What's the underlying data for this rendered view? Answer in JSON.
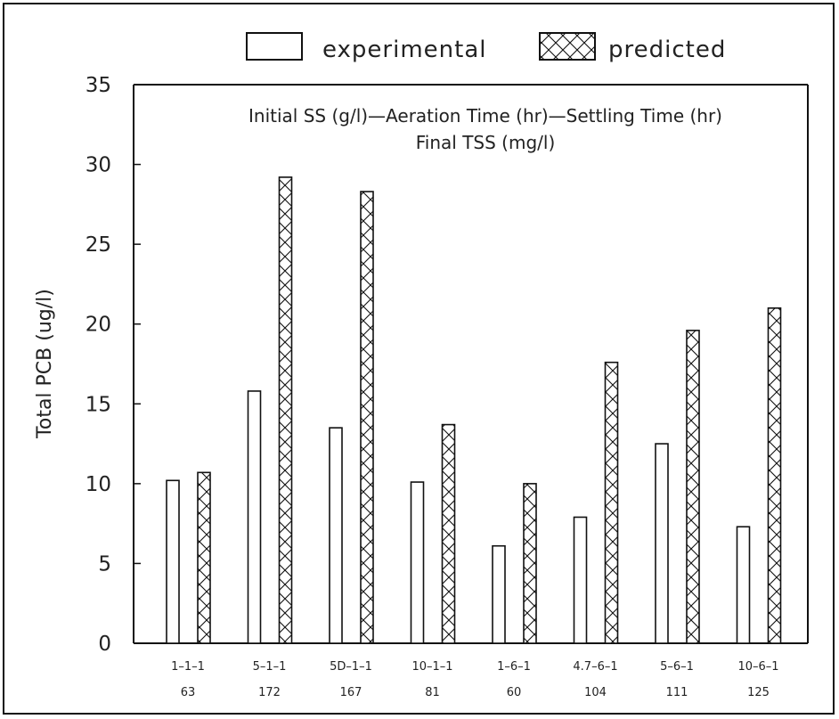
{
  "chart_data": {
    "type": "bar",
    "title": "Initial SS (g/l)—Aeration Time (hr)—Settling Time (hr)",
    "subtitle": "Final TSS (mg/l)",
    "ylabel": "Total PCB (ug/l)",
    "xlabel": "",
    "ylim": [
      0,
      35
    ],
    "yticks": [
      0,
      5,
      10,
      15,
      20,
      25,
      30,
      35
    ],
    "grid": false,
    "legend_position": "top",
    "categories": [
      "1-1-1",
      "5-1-1",
      "5D-1-1",
      "10-1-1",
      "1-6-1",
      "4.7-6-1",
      "5-6-1",
      "10-6-1"
    ],
    "category_sublabels": [
      "63",
      "172",
      "167",
      "81",
      "60",
      "104",
      "111",
      "125"
    ],
    "series": [
      {
        "name": "experimental",
        "pattern": "hollow",
        "values": [
          10.2,
          15.8,
          13.5,
          10.1,
          6.1,
          7.9,
          12.5,
          7.3
        ]
      },
      {
        "name": "predicted",
        "pattern": "crosshatch",
        "values": [
          10.7,
          29.2,
          28.3,
          13.7,
          10.0,
          17.6,
          19.6,
          21.0
        ]
      }
    ],
    "colors": {
      "stroke": "#111111",
      "fill": "#ffffff"
    }
  }
}
